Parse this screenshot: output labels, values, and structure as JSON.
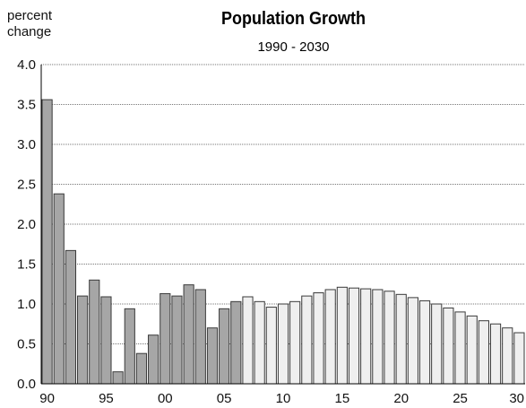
{
  "chart_data": {
    "type": "bar",
    "title": "Population Growth",
    "subtitle": "1990 - 2030",
    "ylabel": [
      "percent",
      "change"
    ],
    "xlabel": "",
    "ylim": [
      0,
      4.0
    ],
    "yticks": [
      "0.0",
      "0.5",
      "1.0",
      "1.5",
      "2.0",
      "2.5",
      "3.0",
      "3.5",
      "4.0"
    ],
    "xticks": [
      "90",
      "95",
      "00",
      "05",
      "10",
      "15",
      "20",
      "25",
      "30"
    ],
    "grid": true,
    "categories": [
      1990,
      1991,
      1992,
      1993,
      1994,
      1995,
      1996,
      1997,
      1998,
      1999,
      2000,
      2001,
      2002,
      2003,
      2004,
      2005,
      2006,
      2007,
      2008,
      2009,
      2010,
      2011,
      2012,
      2013,
      2014,
      2015,
      2016,
      2017,
      2018,
      2019,
      2020,
      2021,
      2022,
      2023,
      2024,
      2025,
      2026,
      2027,
      2028,
      2029,
      2030
    ],
    "series": [
      {
        "values": [
          3.56,
          2.38,
          1.67,
          1.1,
          1.3,
          1.09,
          0.15,
          0.94,
          0.38,
          0.61,
          1.13,
          1.1,
          1.24,
          1.18,
          0.7,
          0.94,
          1.03,
          null,
          null,
          null,
          null,
          null,
          null,
          null,
          null,
          null,
          null,
          null,
          null,
          null,
          null,
          null,
          null,
          null,
          null,
          null,
          null,
          null,
          null,
          null,
          null
        ],
        "color": "#a6a6a6"
      },
      {
        "values": [
          null,
          null,
          null,
          null,
          null,
          null,
          null,
          null,
          null,
          null,
          null,
          null,
          null,
          null,
          null,
          null,
          null,
          1.09,
          1.03,
          0.96,
          1.0,
          1.03,
          1.1,
          1.14,
          1.18,
          1.21,
          1.2,
          1.19,
          1.18,
          1.16,
          1.12,
          1.08,
          1.04,
          1.0,
          0.95,
          0.9,
          0.85,
          0.79,
          0.75,
          0.7,
          0.64
        ],
        "color": "#efefef"
      }
    ]
  }
}
